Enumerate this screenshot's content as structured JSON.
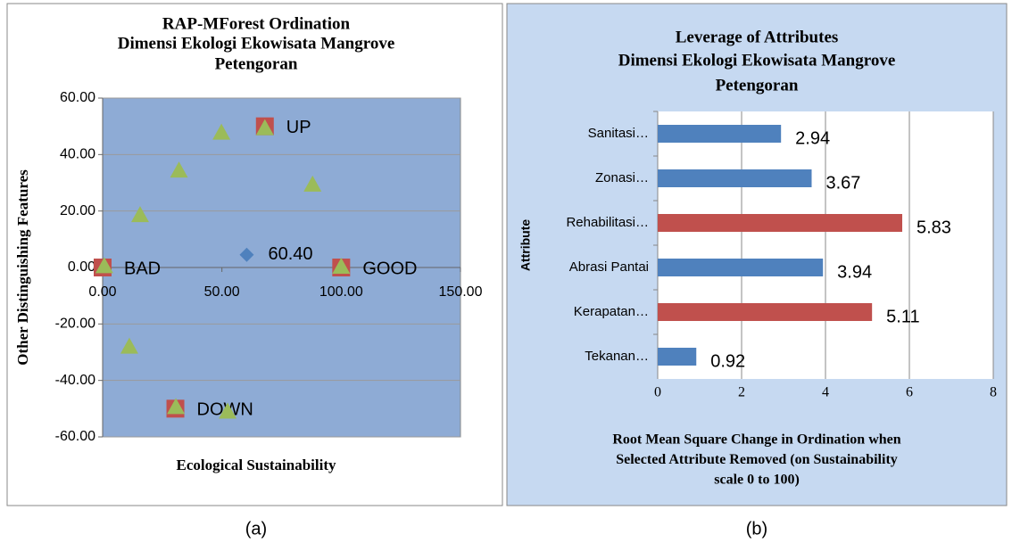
{
  "chart_data": [
    {
      "type": "scatter",
      "title": [
        "RAP-MForest Ordination",
        "Dimensi Ekologi Ekowisata Mangrove",
        "Petengoran"
      ],
      "x_label": "Ecological Sustainability",
      "y_label": "Other Distinguishing Features",
      "xlim": [
        0,
        150
      ],
      "xticks": [
        {
          "value": 0,
          "label": "0.00"
        },
        {
          "value": 50,
          "label": "50.00"
        },
        {
          "value": 100,
          "label": "100.00"
        },
        {
          "value": 150,
          "label": "150.00"
        }
      ],
      "ylim": [
        -60,
        60
      ],
      "yticks": [
        {
          "value": -60,
          "label": "-60.00"
        },
        {
          "value": -40,
          "label": "-40.00"
        },
        {
          "value": -20,
          "label": "-20.00"
        },
        {
          "value": 0,
          "label": "0.00"
        },
        {
          "value": 20,
          "label": "20.00"
        },
        {
          "value": 40,
          "label": "40.00"
        },
        {
          "value": 60,
          "label": "60.00"
        }
      ],
      "grid": true,
      "series": [
        {
          "marker": "square",
          "color": "#c0504d",
          "x": [
            0,
            100,
            68,
            30.5
          ],
          "values": [
            0,
            0,
            50,
            -50
          ],
          "point_labels": [
            "BAD",
            "GOOD",
            "UP",
            "DOWN"
          ]
        },
        {
          "marker": "triangle",
          "color": "#9bbb59",
          "x": [
            0.7,
            15.7,
            32,
            49.8,
            68,
            88,
            100,
            11.2,
            30.7,
            52.4
          ],
          "values": [
            0.5,
            18.6,
            34.4,
            47.8,
            49.4,
            29.4,
            0.3,
            -28,
            -49.4,
            -51
          ]
        },
        {
          "marker": "diamond",
          "color": "#4f81bd",
          "x": [
            60.4
          ],
          "values": [
            4.5
          ],
          "value_labels": [
            "60.40"
          ]
        }
      ]
    },
    {
      "type": "hbar",
      "title": [
        "Leverage of Attributes",
        "Dimensi Ekologi Ekowisata Mangrove",
        "Petengoran"
      ],
      "y_label": "Attribute",
      "x_label": [
        "Root Mean Square Change in Ordination when",
        "Selected Attribute Removed (on Sustainability",
        "scale 0 to 100)"
      ],
      "categories": [
        "Sanitasi…",
        "Zonasi…",
        "Rehabilitasi…",
        "Abrasi Pantai",
        "Kerapatan…",
        "Tekanan…"
      ],
      "values": [
        2.94,
        3.67,
        5.83,
        3.94,
        5.11,
        0.92
      ],
      "colors": [
        "#4f81bd",
        "#4f81bd",
        "#c0504d",
        "#4f81bd",
        "#c0504d",
        "#4f81bd"
      ],
      "xlim": [
        0,
        8
      ],
      "xticks": [
        0,
        2,
        4,
        6,
        8
      ],
      "grid": true
    }
  ],
  "captions": [
    "(a)",
    "(b)"
  ]
}
